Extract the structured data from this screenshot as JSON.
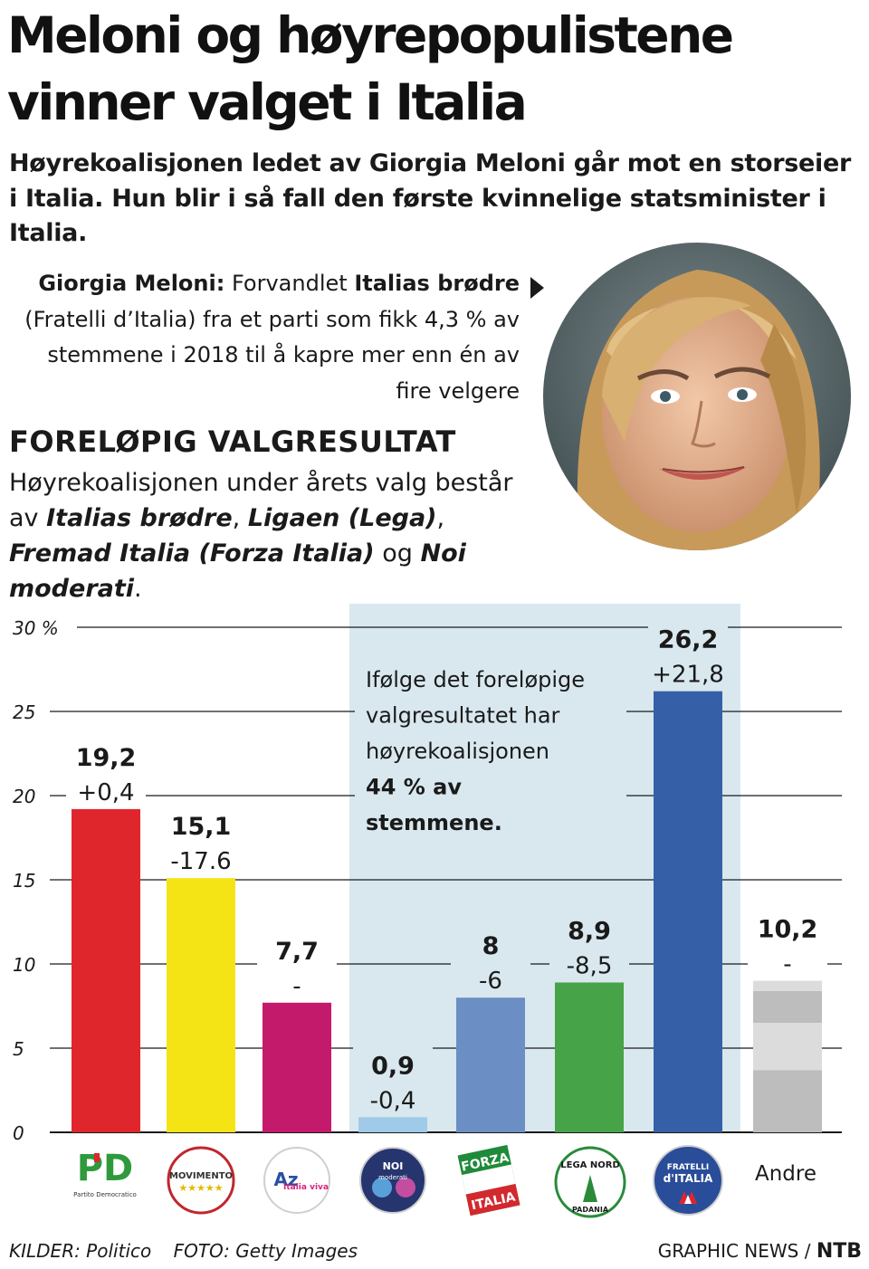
{
  "header": {
    "title": "Meloni og høyrepopulistene vinner valget i Italia",
    "subtitle": "Høyrekoalisjonen ledet av Giorgia Meloni går mot en storseier i Italia. Hun blir i så fall den første kvinnelige statsminister i Italia."
  },
  "caption": {
    "name": "Giorgia Meloni:",
    "text_1": "Forvandlet",
    "party": "Italias brødre",
    "text_2": "(Fratelli d’Italia) fra et parti som fikk 4,3 % av stemmene i 2018 til å kapre mer enn én av fire velgere"
  },
  "section": {
    "heading": "FORELØPIG VALGRESULTAT",
    "intro_1": "Høyrekoalisjonen under årets valg består av",
    "p1": "Italias brødre",
    "sep1": ",",
    "p2": "Ligaen (Lega)",
    "sep2": ",",
    "p3": "Fremad Italia (Forza Italia)",
    "sep3": "og",
    "p4": "Noi moderati",
    "end": "."
  },
  "chart_data": {
    "type": "bar",
    "ylim": [
      0,
      30
    ],
    "yticks": [
      0,
      5,
      10,
      15,
      20,
      25,
      30
    ],
    "ytick_labels": [
      "0",
      "5",
      "10",
      "15",
      "20",
      "25",
      "30 %"
    ],
    "values": [
      19.2,
      15.1,
      7.7,
      0.9,
      8,
      8.9,
      26.2,
      10.2
    ],
    "value_labels": [
      "19,2",
      "15,1",
      "7,7",
      "0,9",
      "8",
      "8,9",
      "26,2",
      "10,2"
    ],
    "change_labels": [
      "+0,4",
      "-17.6",
      "-",
      "-0,4",
      "-6",
      "-8,5",
      "+21,8",
      "-"
    ],
    "colors": [
      "#e0262d",
      "#f5e415",
      "#c41a6b",
      "#9fcbe8",
      "#6b8fc4",
      "#47a347",
      "#3560a8",
      "#bdbdbd"
    ],
    "categories": [
      "PD",
      "MoVimento 5 Stelle",
      "Azione – Italia Viva",
      "Noi moderati",
      "Forza Italia",
      "Lega Nord",
      "Fratelli d'Italia",
      "Andre"
    ],
    "andre_label": "Andre",
    "annotation": {
      "line1": "Ifølge det foreløpige",
      "line2": "valgresultatet har",
      "line3": "høyrekoalisjonen",
      "line4": "44 % av",
      "line5": "stemmene."
    },
    "logos": {
      "pd": "PD",
      "pd_sub": "Partito Democratico",
      "m5s": "MOVIMENTO",
      "m5s_stars": "★★★★★",
      "azione": "Az",
      "azione_sub": "Italia viva",
      "noi": "NOI",
      "noi_sub": "moderati",
      "forza_1": "FORZA",
      "forza_2": "ITALIA",
      "lega_1": "LEGA NORD",
      "lega_2": "PADANIA",
      "fdi_1": "FRATELLI",
      "fdi_2": "d'ITALIA"
    },
    "highlight_color": "#d9e8ef"
  },
  "footer": {
    "sources": "KILDER: Politico",
    "photo": "FOTO: Getty Images",
    "credit": "GRAPHIC NEWS /",
    "agency": "NTB"
  }
}
